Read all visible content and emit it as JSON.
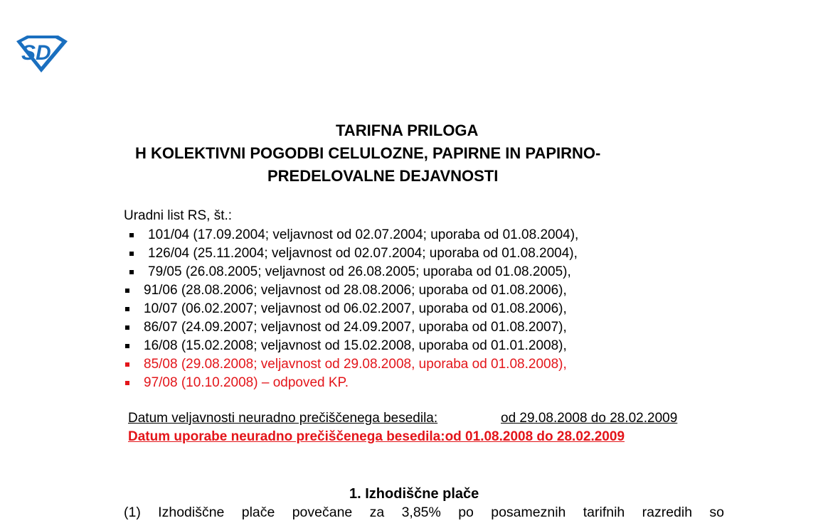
{
  "header": {
    "title_lines": [
      "TARIFNA PRILOGA",
      "H KOLEKTIVNI POGODBI CELULOZNE, PAPIRNE IN PAPIRNO-",
      "PREDELOVALNE DEJAVNOSTI"
    ]
  },
  "sources": {
    "intro": "Uradni list RS, št.:",
    "items": [
      "101/04 (17.09.2004; veljavnost od 02.07.2004; uporaba od 01.08.2004),",
      "126/04 (25.11.2004; veljavnost od 02.07.2004; uporaba od 01.08.2004),",
      "79/05 (26.08.2005; veljavnost od 26.08.2005; uporaba od 01.08.2005),",
      "91/06 (28.08.2006; veljavnost od 28.08.2006; uporaba od 01.08.2006),",
      "10/07 (06.02.2007; veljavnost od 06.02.2007, uporaba od 01.08.2006),",
      "86/07 (24.09.2007; veljavnost od 24.09.2007, uporaba od 01.08.2007),",
      "16/08 (15.02.2008; veljavnost od 15.02.2008, uporaba od 01.01.2008),",
      "85/08 (29.08.2008; veljavnost od 29.08.2008, uporaba od 01.08.2008),",
      "97/08 (10.10.2008) – odpoved KP."
    ]
  },
  "dates": {
    "validity_label": "Datum veljavnosti neuradno prečiščenega besedila:",
    "validity_value": "od 29.08.2008 do 28.02.2009",
    "use": "Datum uporabe neuradno prečiščenega besedila:od 01.08.2008 do 28.02.2009"
  },
  "section": {
    "heading": "1. Izhodiščne plače",
    "paragraph": "(1) Izhodiščne plače povečane za 3,85% po posameznih tarifnih razredih so"
  }
}
